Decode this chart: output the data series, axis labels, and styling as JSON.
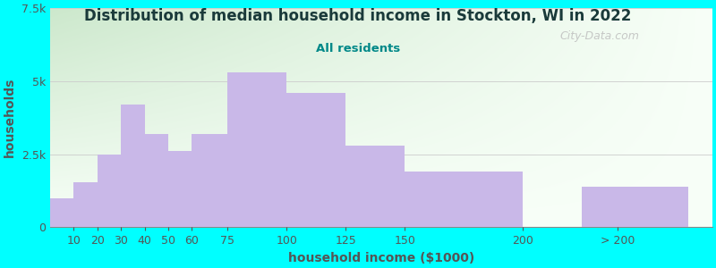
{
  "title": "Distribution of median household income in Stockton, WI in 2022",
  "subtitle": "All residents",
  "xlabel": "household income ($1000)",
  "ylabel": "households",
  "bar_labels": [
    "10",
    "20",
    "30",
    "40",
    "50",
    "60",
    "75",
    "100",
    "125",
    "150",
    "200",
    "> 200"
  ],
  "bar_heights": [
    1000,
    1550,
    2500,
    4200,
    3200,
    2600,
    3200,
    5300,
    4600,
    2800,
    1900,
    1400
  ],
  "bar_color": "#c9b8e8",
  "bar_edgecolor": "none",
  "bg_color": "#00ffff",
  "plot_bg_top_left": "#cce8cc",
  "plot_bg_bottom_right": "#f8fff8",
  "title_color": "#1a3a3a",
  "subtitle_color": "#008888",
  "axis_color": "#aaaaaa",
  "tick_color": "#555555",
  "ylabel_color": "#555555",
  "xlabel_color": "#555555",
  "watermark": "City-Data.com",
  "ylim": [
    0,
    7500
  ],
  "yticks": [
    0,
    2500,
    5000,
    7500
  ],
  "ytick_labels": [
    "0",
    "2.5k",
    "5k",
    "7.5k"
  ],
  "figsize": [
    8.0,
    3.0
  ],
  "dpi": 100
}
